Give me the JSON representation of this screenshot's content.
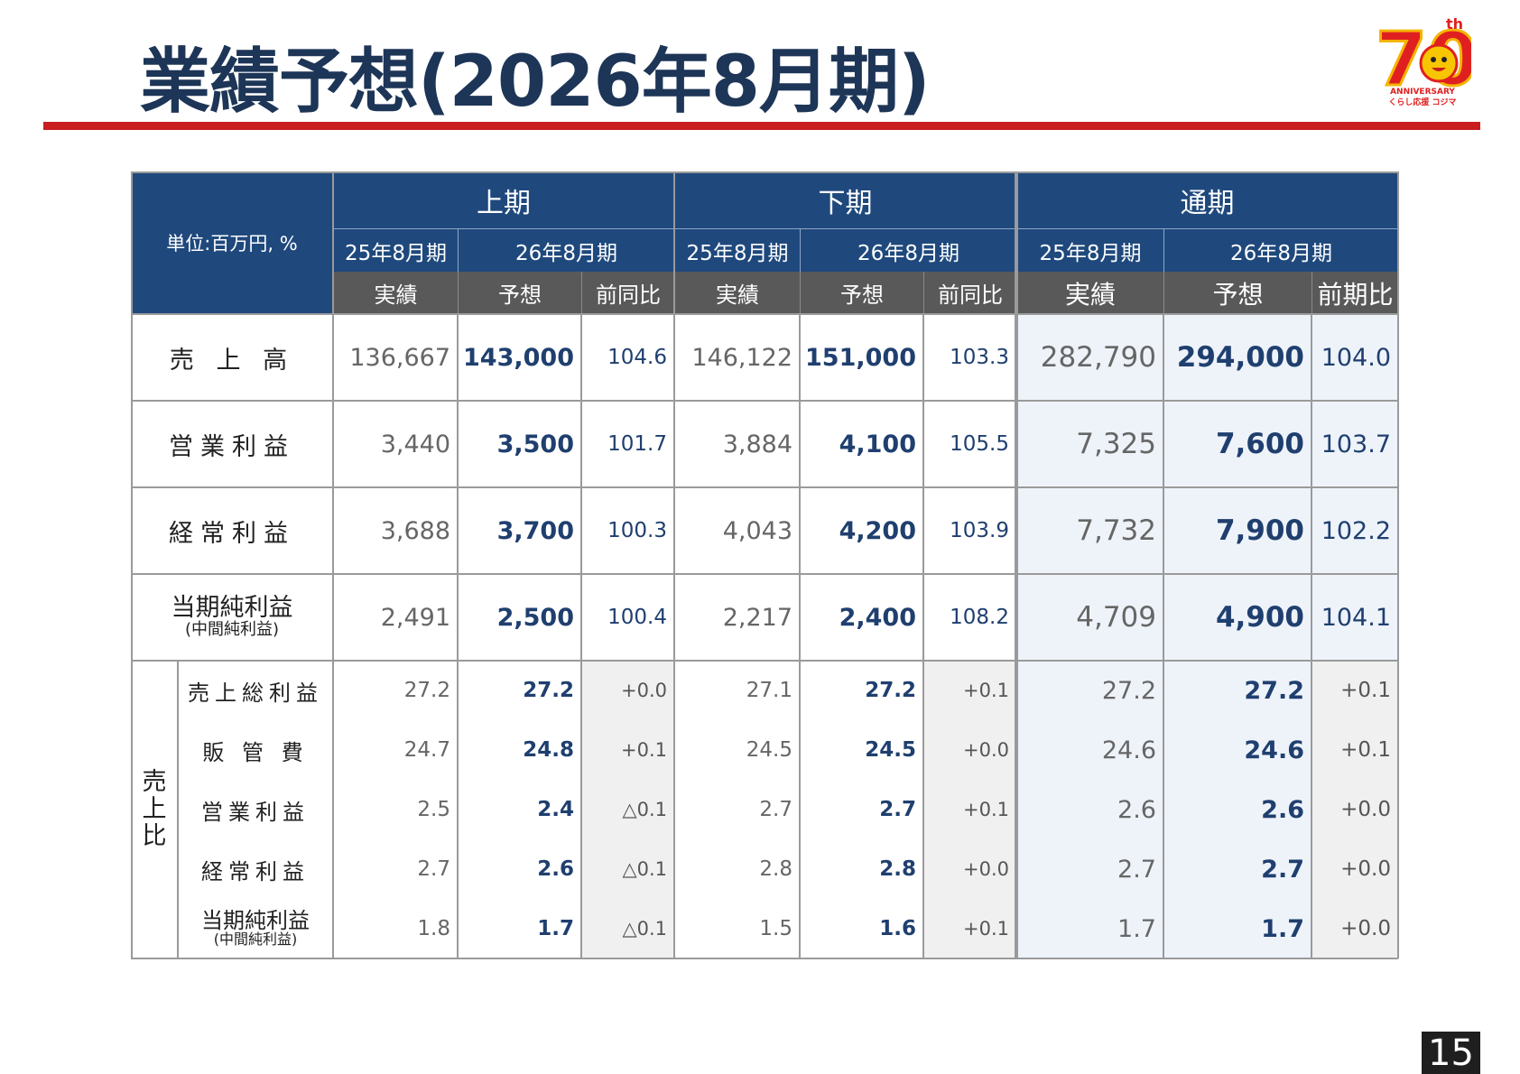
{
  "page": {
    "title": "業績予想(2026年8月期)",
    "number": "15"
  },
  "logo": {
    "big": "70",
    "sup": "th",
    "line1": "ANNIVERSARY",
    "line2": "くらし応援 コジマ"
  },
  "table": {
    "unit": "単位:百万円, %",
    "periods": [
      "上期",
      "下期",
      "通期"
    ],
    "years": [
      "25年8月期",
      "26年8月期",
      "25年8月期",
      "26年8月期",
      "25年8月期",
      "26年8月期"
    ],
    "subs": [
      "実績",
      "予想",
      "前同比",
      "実績",
      "予想",
      "前同比",
      "実績",
      "予想",
      "前期比"
    ],
    "rows": [
      {
        "label": "売 上 高",
        "values": [
          "136,667",
          "143,000",
          "104.6",
          "146,122",
          "151,000",
          "103.3",
          "282,790",
          "294,000",
          "104.0"
        ]
      },
      {
        "label": "営業利益",
        "values": [
          "3,440",
          "3,500",
          "101.7",
          "3,884",
          "4,100",
          "105.5",
          "7,325",
          "7,600",
          "103.7"
        ]
      },
      {
        "label": "経常利益",
        "values": [
          "3,688",
          "3,700",
          "100.3",
          "4,043",
          "4,200",
          "103.9",
          "7,732",
          "7,900",
          "102.2"
        ]
      },
      {
        "label": "当期純利益",
        "sublabel": "(中間純利益)",
        "values": [
          "2,491",
          "2,500",
          "100.4",
          "2,217",
          "2,400",
          "108.2",
          "4,709",
          "4,900",
          "104.1"
        ]
      }
    ],
    "ratio_label": "売上比",
    "ratio_rows": [
      {
        "label": "売上総利益",
        "values": [
          "27.2",
          "27.2",
          "+0.0",
          "27.1",
          "27.2",
          "+0.1",
          "27.2",
          "27.2",
          "+0.1"
        ]
      },
      {
        "label": "販 管 費",
        "values": [
          "24.7",
          "24.8",
          "+0.1",
          "24.5",
          "24.5",
          "+0.0",
          "24.6",
          "24.6",
          "+0.1"
        ]
      },
      {
        "label": "営業利益",
        "values": [
          "2.5",
          "2.4",
          "△0.1",
          "2.7",
          "2.7",
          "+0.1",
          "2.6",
          "2.6",
          "+0.0"
        ]
      },
      {
        "label": "経常利益",
        "values": [
          "2.7",
          "2.6",
          "△0.1",
          "2.8",
          "2.8",
          "+0.0",
          "2.7",
          "2.7",
          "+0.0"
        ]
      },
      {
        "label": "当期純利益",
        "sublabel": "(中間純利益)",
        "values": [
          "1.8",
          "1.7",
          "△0.1",
          "1.5",
          "1.6",
          "+0.1",
          "1.7",
          "1.7",
          "+0.0"
        ]
      }
    ]
  }
}
